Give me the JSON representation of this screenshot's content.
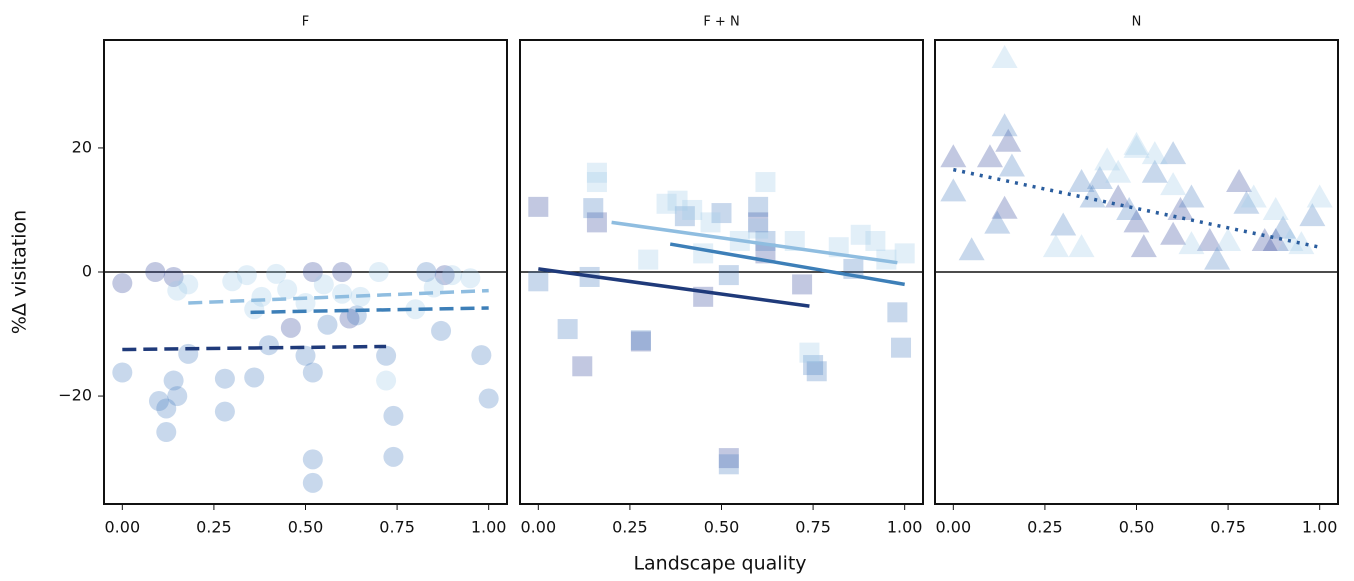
{
  "x_label": "Landscape quality",
  "y_label": "%Δ visitation",
  "chart_data": [
    {
      "type": "scatter",
      "title": "F",
      "marker": "circle",
      "xlim": [
        -0.05,
        1.05
      ],
      "ylim": [
        -37.4,
        37.4
      ],
      "hline": 0,
      "xticks": [
        {
          "value": 0,
          "label": "0.00"
        },
        {
          "value": 0.25,
          "label": "0.25"
        },
        {
          "value": 0.5,
          "label": "0.50"
        },
        {
          "value": 0.75,
          "label": "0.75"
        },
        {
          "value": 1,
          "label": "1.00"
        }
      ],
      "yticks": [
        {
          "value": -20,
          "label": "−20"
        },
        0,
        20
      ],
      "series": [
        {
          "color": "#34489a",
          "x": [
            0.0,
            0.09,
            0.14,
            0.46,
            0.52,
            0.6,
            0.62,
            0.88
          ],
          "values": [
            -1.8,
            0,
            -0.8,
            -9,
            0,
            0,
            -7.5,
            -0.5
          ]
        },
        {
          "color": "#4a7fbf",
          "x": [
            0.0,
            0.1,
            0.12,
            0.14,
            0.15,
            0.18,
            0.28,
            0.36,
            0.4,
            0.5,
            0.52,
            0.52,
            0.56,
            0.64,
            0.72,
            0.74,
            0.83,
            0.87,
            0.98,
            1.0,
            0.12,
            0.28,
            0.52,
            0.74
          ],
          "values": [
            -16.2,
            -20.8,
            -22,
            -17.5,
            -20,
            -13.2,
            -17.2,
            -17,
            -11.8,
            -13.5,
            -30.2,
            -16.2,
            -8.5,
            -7,
            -13.5,
            -23.2,
            0,
            -9.5,
            -13.4,
            -20.4,
            -25.8,
            -22.5,
            -34,
            -29.8
          ]
        },
        {
          "color": "#9ecae8",
          "x": [
            0.15,
            0.3,
            0.34,
            0.38,
            0.42,
            0.45,
            0.5,
            0.55,
            0.6,
            0.65,
            0.7,
            0.8,
            0.85,
            0.9,
            0.95,
            0.18,
            0.36,
            0.72
          ],
          "values": [
            -3,
            -1.5,
            -0.5,
            -4,
            -0.3,
            -2.8,
            -5,
            -2,
            -3.5,
            -4,
            0,
            -6,
            -2.5,
            -0.5,
            -1,
            -2,
            -6,
            -17.5
          ]
        }
      ],
      "fits": [
        {
          "color": "#1f3a7a",
          "style": "dashed",
          "x": [
            0,
            0.72
          ],
          "values": [
            -12.5,
            -12
          ]
        },
        {
          "color": "#3d7fb8",
          "style": "dashed",
          "x": [
            0.35,
            1.0
          ],
          "values": [
            -6.5,
            -5.8
          ]
        },
        {
          "color": "#8fbde0",
          "style": "dashed",
          "x": [
            0.18,
            1.0
          ],
          "values": [
            -5,
            -3
          ]
        }
      ]
    },
    {
      "type": "scatter",
      "title": "F + N",
      "marker": "square",
      "xlim": [
        -0.05,
        1.05
      ],
      "ylim": [
        -37.4,
        37.4
      ],
      "hline": 0,
      "xticks": [
        {
          "value": 0,
          "label": "0.00"
        },
        {
          "value": 0.25,
          "label": "0.25"
        },
        {
          "value": 0.5,
          "label": "0.50"
        },
        {
          "value": 0.75,
          "label": "0.75"
        },
        {
          "value": 1,
          "label": "1.00"
        }
      ],
      "series": [
        {
          "color": "#34489a",
          "x": [
            0.0,
            0.12,
            0.16,
            0.28,
            0.45,
            0.52,
            0.6,
            0.62,
            0.72
          ],
          "values": [
            10.5,
            -15.2,
            8,
            -11.2,
            -4,
            -30,
            8,
            3,
            -2
          ]
        },
        {
          "color": "#4a7fbf",
          "x": [
            0.0,
            0.08,
            0.14,
            0.15,
            0.28,
            0.4,
            0.5,
            0.52,
            0.6,
            0.62,
            0.75,
            0.76,
            0.86,
            0.98,
            0.99,
            0.52
          ],
          "values": [
            -1.5,
            -9.2,
            -0.8,
            10.3,
            -11,
            9,
            9.5,
            -0.5,
            10.5,
            5,
            -15,
            -16,
            0.5,
            -6.5,
            -12.2,
            -31
          ]
        },
        {
          "color": "#9ecae8",
          "x": [
            0.16,
            0.16,
            0.35,
            0.38,
            0.42,
            0.47,
            0.55,
            0.6,
            0.62,
            0.7,
            0.74,
            0.82,
            0.88,
            0.92,
            0.95,
            1.0,
            0.3,
            0.45
          ],
          "values": [
            16,
            14.5,
            11,
            11.5,
            10,
            8,
            5,
            7,
            14.5,
            5,
            -13,
            4,
            6,
            5,
            2,
            3,
            2,
            3
          ]
        }
      ],
      "fits": [
        {
          "color": "#1f3a7a",
          "style": "solid",
          "x": [
            0,
            0.74
          ],
          "values": [
            0.5,
            -5.5
          ]
        },
        {
          "color": "#3d7fb8",
          "style": "solid",
          "x": [
            0.36,
            1.0
          ],
          "values": [
            4.5,
            -2
          ]
        },
        {
          "color": "#8fbde0",
          "style": "solid",
          "x": [
            0.2,
            0.98
          ],
          "values": [
            8,
            1.5
          ]
        }
      ]
    },
    {
      "type": "scatter",
      "title": "N",
      "marker": "triangle",
      "xlim": [
        -0.05,
        1.05
      ],
      "ylim": [
        -37.4,
        37.4
      ],
      "hline": 0,
      "xticks": [
        {
          "value": 0,
          "label": "0.00"
        },
        {
          "value": 0.25,
          "label": "0.25"
        },
        {
          "value": 0.5,
          "label": "0.50"
        },
        {
          "value": 0.75,
          "label": "0.75"
        },
        {
          "value": 1,
          "label": "1.00"
        }
      ],
      "series": [
        {
          "color": "#34489a",
          "x": [
            0.0,
            0.1,
            0.14,
            0.15,
            0.45,
            0.5,
            0.52,
            0.6,
            0.62,
            0.7,
            0.78,
            0.85,
            0.88
          ],
          "values": [
            18.5,
            18.5,
            10.2,
            21,
            12,
            8,
            4,
            6,
            10,
            5,
            14.5,
            5,
            5
          ]
        },
        {
          "color": "#4a7fbf",
          "x": [
            0.0,
            0.05,
            0.12,
            0.14,
            0.16,
            0.3,
            0.35,
            0.38,
            0.4,
            0.48,
            0.55,
            0.6,
            0.65,
            0.72,
            0.8,
            0.9,
            0.98
          ],
          "values": [
            13,
            3.5,
            7.8,
            23.5,
            17,
            7.5,
            14.5,
            12,
            15,
            10,
            16,
            19,
            12,
            2,
            11,
            7,
            9
          ]
        },
        {
          "color": "#9ecae8",
          "x": [
            0.14,
            0.28,
            0.35,
            0.42,
            0.45,
            0.5,
            0.55,
            0.6,
            0.65,
            0.75,
            0.82,
            0.88,
            0.92,
            0.95,
            1.0,
            0.5
          ],
          "values": [
            34.5,
            4,
            4,
            18,
            16,
            20.5,
            19,
            14,
            4.5,
            5,
            12,
            10,
            5,
            4.5,
            12,
            20
          ]
        }
      ],
      "fits": [
        {
          "color": "#2a5d9e",
          "style": "dotted",
          "x": [
            0,
            1.0
          ],
          "values": [
            16.5,
            4
          ]
        }
      ]
    }
  ]
}
